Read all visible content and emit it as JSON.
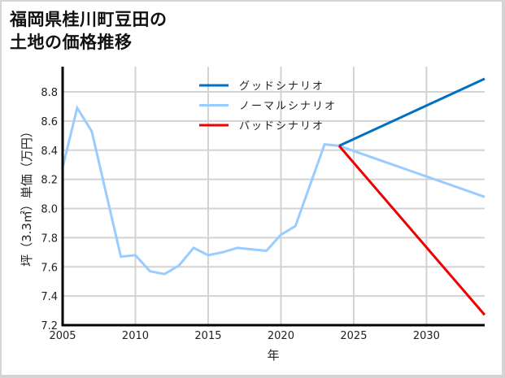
{
  "title_line1": "福岡県桂川町豆田の",
  "title_line2": "土地の価格推移",
  "colors": {
    "good": "#0070c0",
    "normal": "#99ccff",
    "bad": "#ee0000",
    "grid": "#d3d3d3",
    "axis": "#000000",
    "frame": "#d4d4d4"
  },
  "chart_data": {
    "type": "line",
    "title": "福岡県桂川町豆田の土地の価格推移",
    "xlabel": "年",
    "ylabel": "坪（3.3㎡）単価（万円）",
    "xlim": [
      2005,
      2034
    ],
    "ylim": [
      7.2,
      8.95
    ],
    "x_ticks": [
      2005,
      2010,
      2015,
      2020,
      2025,
      2030
    ],
    "y_ticks": [
      7.2,
      7.4,
      7.6,
      7.8,
      8.0,
      8.2,
      8.4,
      8.6,
      8.8
    ],
    "grid": true,
    "legend_position": "upper center",
    "series": [
      {
        "name": "グッドシナリオ",
        "color": "#0070c0",
        "x": [
          2024,
          2034
        ],
        "values": [
          8.43,
          8.89
        ]
      },
      {
        "name": "ノーマルシナリオ",
        "color": "#99ccff",
        "x": [
          2005,
          2006,
          2007,
          2008,
          2009,
          2010,
          2011,
          2012,
          2013,
          2014,
          2015,
          2016,
          2017,
          2018,
          2019,
          2020,
          2021,
          2022,
          2023,
          2024,
          2034
        ],
        "values": [
          8.28,
          8.69,
          8.53,
          8.1,
          7.67,
          7.68,
          7.57,
          7.55,
          7.61,
          7.73,
          7.68,
          7.7,
          7.73,
          7.72,
          7.71,
          7.82,
          7.88,
          8.16,
          8.44,
          8.43,
          8.08
        ]
      },
      {
        "name": "バッドシナリオ",
        "color": "#ee0000",
        "x": [
          2024,
          2034
        ],
        "values": [
          8.43,
          7.27
        ]
      }
    ]
  },
  "legend": [
    {
      "label": "グッドシナリオ",
      "color": "#0070c0"
    },
    {
      "label": "ノーマルシナリオ",
      "color": "#99ccff"
    },
    {
      "label": "バッドシナリオ",
      "color": "#ee0000"
    }
  ]
}
